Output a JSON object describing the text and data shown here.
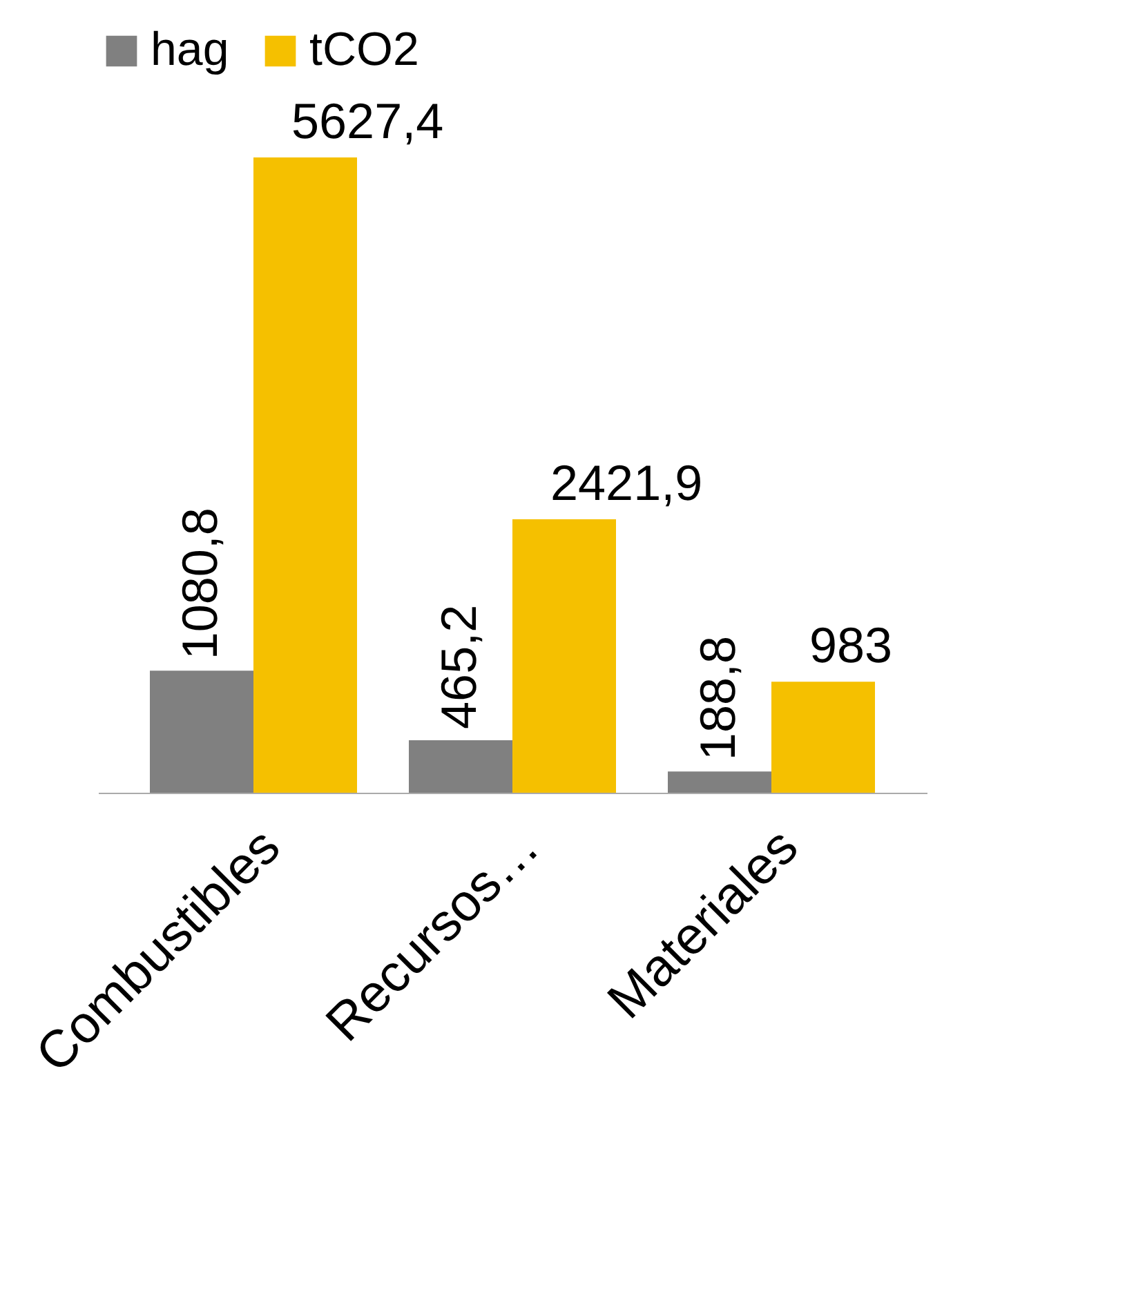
{
  "chart_data": {
    "type": "bar",
    "categories": [
      "Combustibles",
      "Recursos…",
      "Materiales"
    ],
    "series": [
      {
        "name": "hag",
        "color": "#808080",
        "values": [
          1080.8,
          465.2,
          188.8
        ],
        "value_labels": [
          "1080,8",
          "465,2",
          "188,8"
        ]
      },
      {
        "name": "tCO2",
        "color": "#f5c000",
        "values": [
          5627.4,
          2421.9,
          983
        ],
        "value_labels": [
          "5627,4",
          "2421,9",
          "983"
        ]
      }
    ],
    "legend": "top",
    "grid": false
  }
}
